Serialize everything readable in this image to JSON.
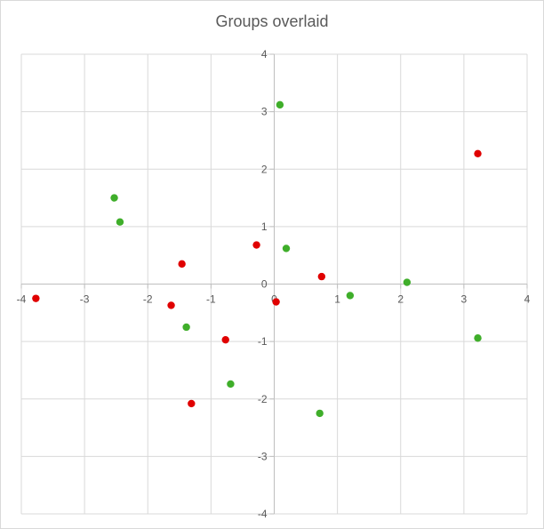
{
  "chart_data": {
    "type": "scatter",
    "title": "Groups overlaid",
    "xlabel": "",
    "ylabel": "",
    "xlim": [
      -4,
      4
    ],
    "ylim": [
      -4,
      4
    ],
    "xticks": [
      -4,
      -3,
      -2,
      -1,
      0,
      1,
      2,
      3,
      4
    ],
    "yticks": [
      -4,
      -3,
      -2,
      -1,
      0,
      1,
      2,
      3,
      4
    ],
    "grid": true,
    "series": [
      {
        "color": "#e00000",
        "points": [
          {
            "x": -3.77,
            "y": -0.25
          },
          {
            "x": -1.63,
            "y": -0.37
          },
          {
            "x": -1.46,
            "y": 0.35
          },
          {
            "x": -1.31,
            "y": -2.08
          },
          {
            "x": -0.77,
            "y": -0.97
          },
          {
            "x": -0.28,
            "y": 0.68
          },
          {
            "x": 0.03,
            "y": -0.31
          },
          {
            "x": 0.75,
            "y": 0.13
          },
          {
            "x": 3.22,
            "y": 2.27
          }
        ]
      },
      {
        "color": "#3fae2a",
        "points": [
          {
            "x": -2.53,
            "y": 1.5
          },
          {
            "x": -2.44,
            "y": 1.08
          },
          {
            "x": -1.39,
            "y": -0.75
          },
          {
            "x": -0.69,
            "y": -1.74
          },
          {
            "x": 0.09,
            "y": 3.12
          },
          {
            "x": 0.19,
            "y": 0.62
          },
          {
            "x": 0.72,
            "y": -2.25
          },
          {
            "x": 1.2,
            "y": -0.2
          },
          {
            "x": 2.1,
            "y": 0.03
          },
          {
            "x": 3.22,
            "y": -0.94
          }
        ]
      }
    ]
  }
}
